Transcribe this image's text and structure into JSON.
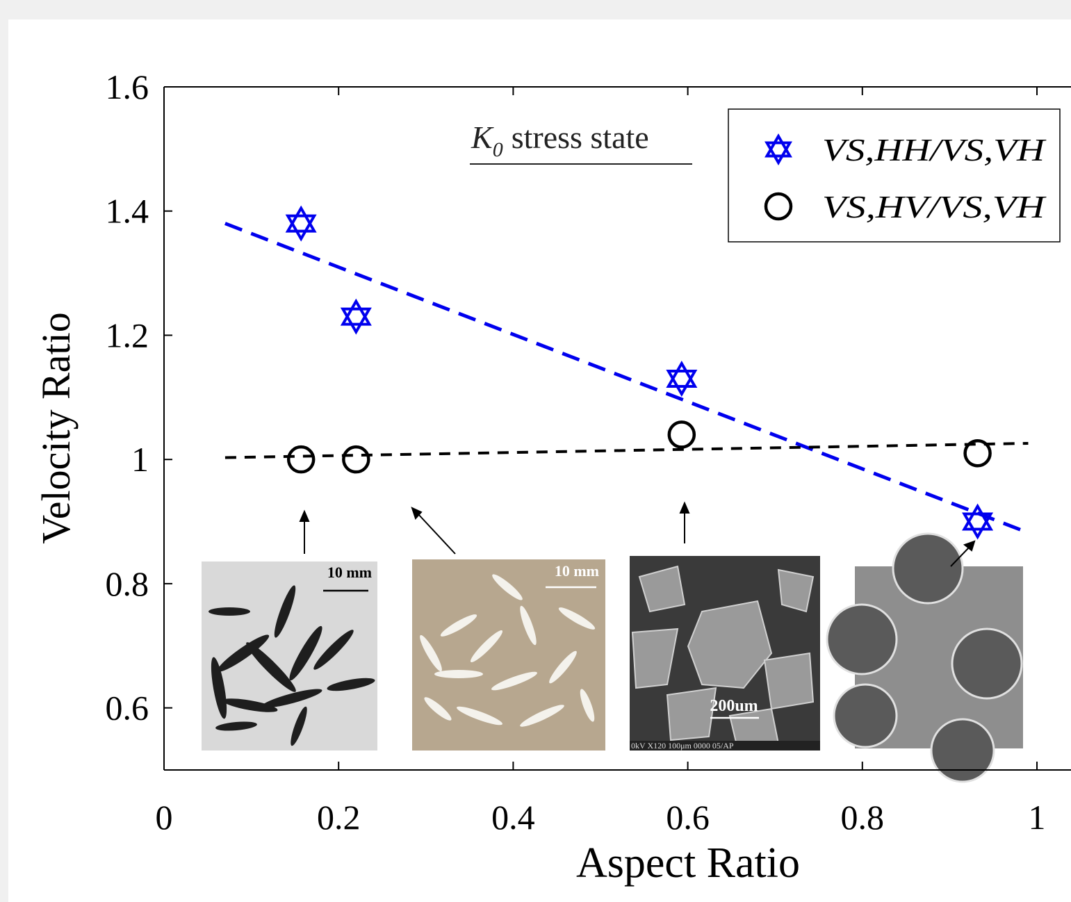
{
  "chart_data": {
    "type": "scatter",
    "xlabel": "Aspect Ratio",
    "ylabel": "Velocity Ratio",
    "annotation": {
      "symbol": "K",
      "subscript": "0",
      "text": "stress state"
    },
    "xlim": [
      0,
      1
    ],
    "xticks": [
      0,
      0.2,
      0.4,
      0.6,
      0.8,
      1
    ],
    "ylim": [
      0.5,
      1.6
    ],
    "yticks": [
      0.6,
      0.8,
      1,
      1.2,
      1.4,
      1.6
    ],
    "legend": "upper right",
    "series": [
      {
        "name": "VS,HH/VS,VH",
        "color": "#0000ee",
        "marker": "hexagram",
        "x": [
          0.157,
          0.22,
          0.593,
          0.932
        ],
        "values": [
          1.38,
          1.23,
          1.13,
          0.9
        ]
      },
      {
        "name": "VS,HV/VS,VH",
        "color": "#000000",
        "marker": "circle",
        "x": [
          0.157,
          0.22,
          0.593,
          0.932
        ],
        "values": [
          1.0,
          1.0,
          1.04,
          1.01
        ]
      }
    ],
    "fits": [
      {
        "color": "#0000ee",
        "x": [
          0.07,
          0.99
        ],
        "values": [
          1.38,
          0.882
        ]
      },
      {
        "color": "#000000",
        "x": [
          0.07,
          0.99
        ],
        "values": [
          1.003,
          1.026
        ]
      }
    ],
    "insets": [
      {
        "scale_label": "10 mm"
      },
      {
        "scale_label": "10 mm"
      },
      {
        "scale_label": "200um",
        "info": "0kV  X120  100μm 0000 05/AP"
      },
      {}
    ]
  }
}
